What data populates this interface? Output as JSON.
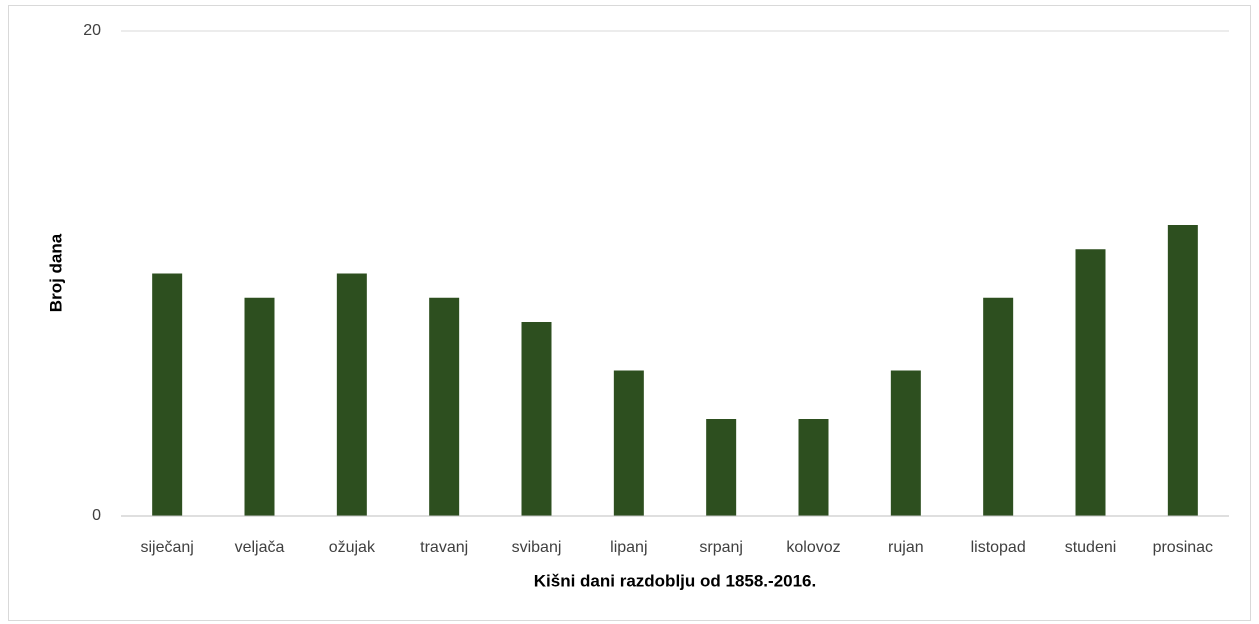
{
  "chart_data": {
    "type": "bar",
    "categories": [
      "siječanj",
      "veljača",
      "ožujak",
      "travanj",
      "svibanj",
      "lipanj",
      "srpanj",
      "kolovoz",
      "rujan",
      "listopad",
      "studeni",
      "prosinac"
    ],
    "values": [
      10,
      9,
      10,
      9,
      8,
      6,
      4,
      4,
      6,
      9,
      11,
      12
    ],
    "color": "#2d4f1f",
    "xlabel": "Kišni dani razdoblju od 1858.-2016.",
    "ylabel": "Broj dana",
    "ylim": [
      0,
      20
    ],
    "yticks": [
      0,
      20
    ],
    "grid": true
  }
}
